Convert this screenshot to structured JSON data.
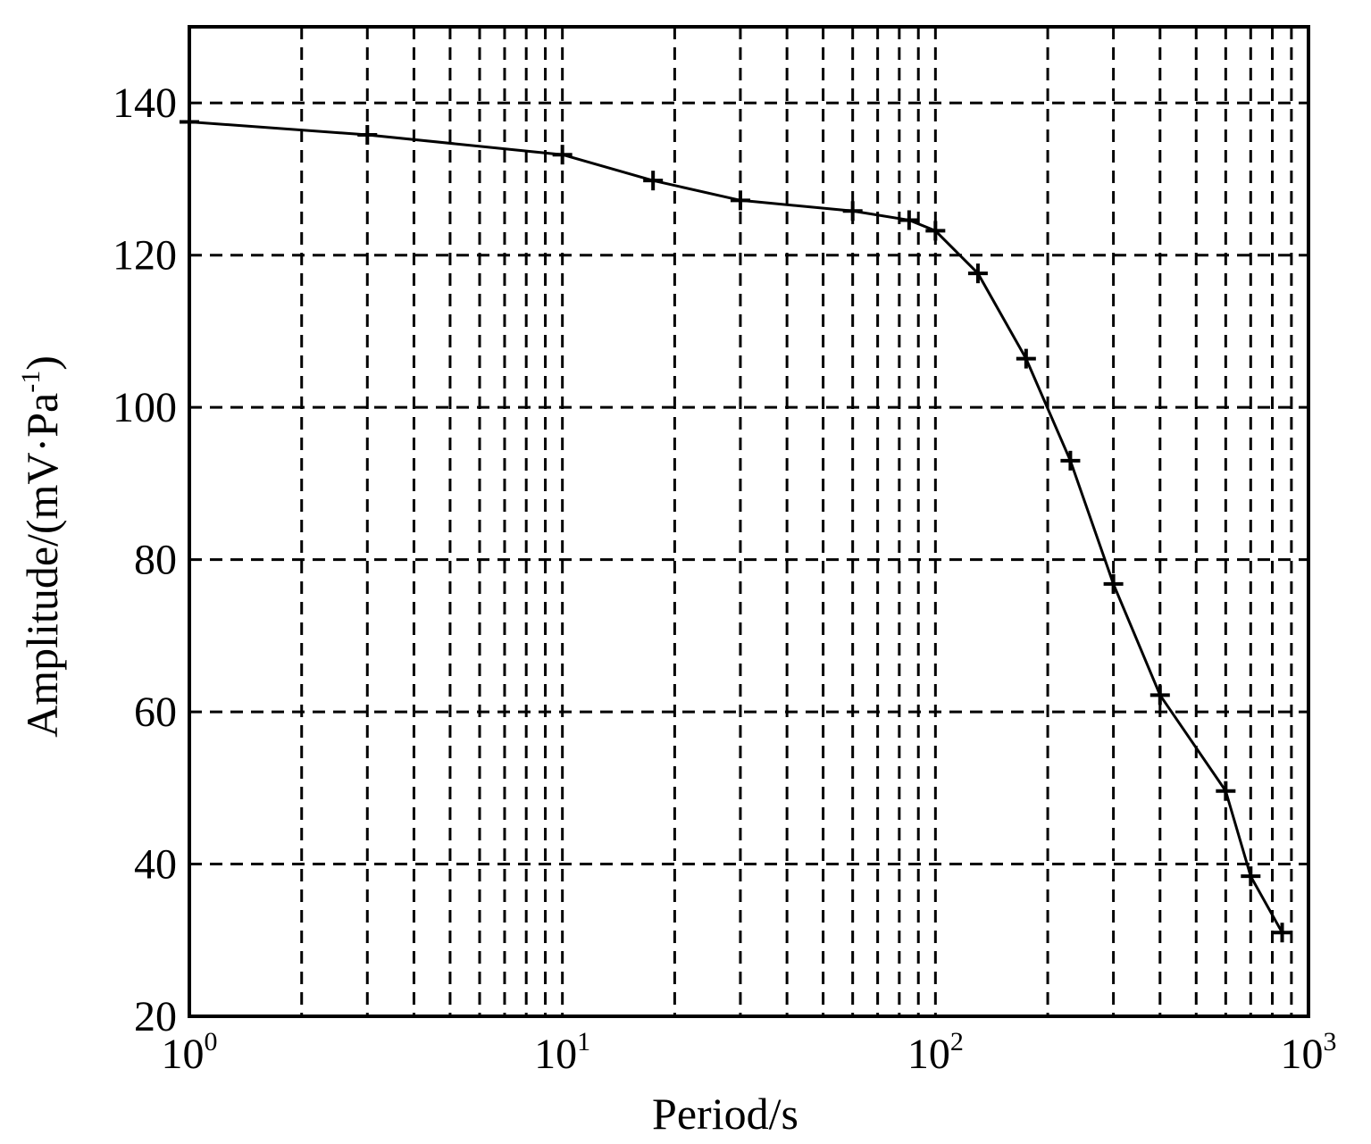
{
  "chart_data": {
    "type": "line",
    "xscale": "log",
    "xlim": [
      1,
      1000
    ],
    "ylim": [
      20,
      150
    ],
    "xlabel": "Period/s",
    "ylabel": "Amplitude/(mV·Pa",
    "ylabel_sup": "-1",
    "ylabel_close": ")",
    "grid": true,
    "x_ticks": [
      {
        "value": 1,
        "base": "10",
        "exp": "0"
      },
      {
        "value": 10,
        "base": "10",
        "exp": "1"
      },
      {
        "value": 100,
        "base": "10",
        "exp": "2"
      },
      {
        "value": 1000,
        "base": "10",
        "exp": "3"
      }
    ],
    "y_ticks": [
      {
        "value": 20,
        "label": "20"
      },
      {
        "value": 40,
        "label": "40"
      },
      {
        "value": 60,
        "label": "60"
      },
      {
        "value": 80,
        "label": "80"
      },
      {
        "value": 100,
        "label": "100"
      },
      {
        "value": 120,
        "label": "120"
      },
      {
        "value": 140,
        "label": "140"
      }
    ],
    "series": [
      {
        "x": [
          1,
          3,
          10,
          17.5,
          30,
          60,
          85,
          100,
          130,
          175,
          230,
          300,
          400,
          600,
          700,
          850
        ],
        "y": [
          137.5,
          135.8,
          133.2,
          129.8,
          127.2,
          125.8,
          124.6,
          123.2,
          117.6,
          106.4,
          93.0,
          76.8,
          62.2,
          49.6,
          38.4,
          31.0
        ]
      }
    ]
  }
}
